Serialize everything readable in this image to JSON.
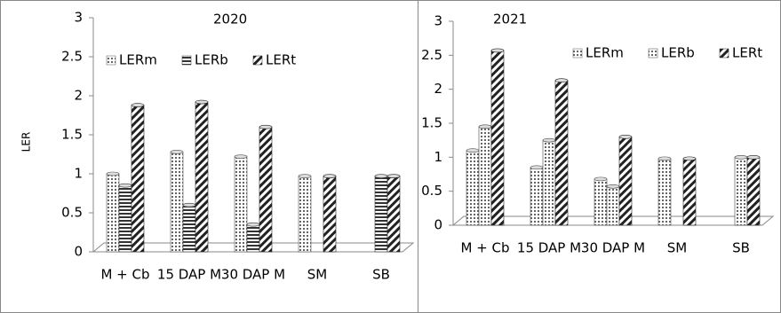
{
  "chart_data": [
    {
      "type": "bar",
      "title": "2020",
      "y_label": "LER",
      "categories": [
        "M + Cb",
        "15 DAP M",
        "30 DAP M",
        "SM",
        "SB"
      ],
      "series": [
        {
          "name": "LERm",
          "pattern": "dots",
          "color": "#555555",
          "values": [
            1.0,
            1.28,
            1.22,
            0.97,
            null
          ]
        },
        {
          "name": "LERb",
          "pattern": "horizontal",
          "color": "#333333",
          "values": [
            0.85,
            0.6,
            0.35,
            null,
            0.97
          ]
        },
        {
          "name": "LERt",
          "pattern": "diagonal",
          "color": "#222222",
          "values": [
            1.88,
            1.92,
            1.6,
            0.97,
            0.97
          ]
        }
      ],
      "ylim": [
        0,
        3
      ],
      "yticks": [
        0,
        0.5,
        1,
        1.5,
        2,
        2.5,
        3
      ]
    },
    {
      "type": "bar",
      "title": "2021",
      "categories": [
        "M + Cb",
        "15 DAP M",
        "30 DAP M",
        "SM",
        "SB"
      ],
      "series": [
        {
          "name": "LERm",
          "pattern": "dots",
          "color": "#555555",
          "values": [
            1.1,
            0.85,
            0.68,
            0.98,
            null
          ]
        },
        {
          "name": "LERb",
          "pattern": "dots",
          "color": "#444444",
          "values": [
            1.45,
            1.25,
            0.57,
            null,
            1.0
          ]
        },
        {
          "name": "LERt",
          "pattern": "diagonal",
          "color": "#222222",
          "values": [
            2.57,
            2.13,
            1.3,
            0.98,
            1.0
          ]
        }
      ],
      "ylim": [
        0,
        3
      ],
      "yticks": [
        0,
        0.5,
        1,
        1.5,
        2,
        2.5,
        3
      ]
    }
  ]
}
